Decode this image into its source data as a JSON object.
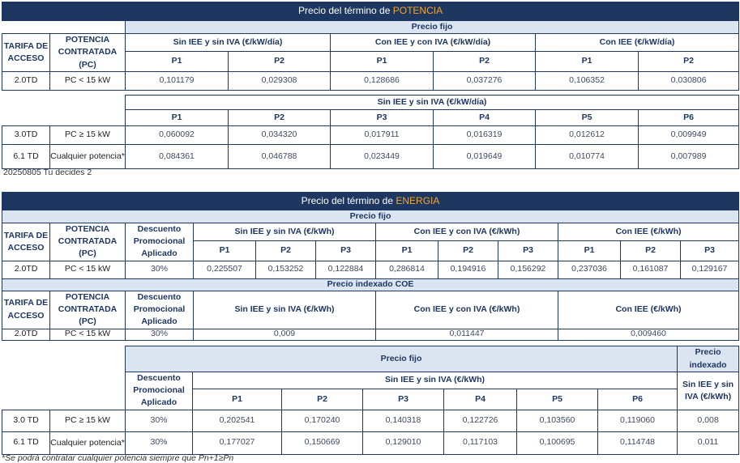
{
  "potencia": {
    "title_prefix": "Precio del término de ",
    "title_highlight": "POTENCIA",
    "precio_fijo": "Precio fijo",
    "col_tarifa": "TARIFA DE ACCESO",
    "col_potencia": "POTENCIA CONTRATADA (PC)",
    "groups": [
      "Sin IEE y sin IVA (€/kW/día)",
      "Con IEE y con IVA (€/kW/día)",
      "Con IEE (€/kW/día)"
    ],
    "periods2": [
      "P1",
      "P2",
      "P1",
      "P2",
      "P1",
      "P2"
    ],
    "row_20td": {
      "tarifa": "2.0TD",
      "potencia": "PC < 15 kW",
      "values": [
        "0,101179",
        "0,029308",
        "0,128686",
        "0,037276",
        "0,106352",
        "0,030806"
      ]
    },
    "group6": "Sin IEE y sin IVA (€/kW/día)",
    "periods6": [
      "P1",
      "P2",
      "P3",
      "P4",
      "P5",
      "P6"
    ],
    "rows6": [
      {
        "tarifa": "3.0TD",
        "potencia": "PC ≥ 15 kW",
        "values": [
          "0,060092",
          "0,034320",
          "0,017911",
          "0,016319",
          "0,012612",
          "0,009949"
        ]
      },
      {
        "tarifa": "6.1 TD",
        "potencia": "Cualquier potencia*",
        "values": [
          "0,084361",
          "0,046788",
          "0,023449",
          "0,019649",
          "0,010774",
          "0,007989"
        ]
      }
    ],
    "footnote": "20250805 Tu decides 2"
  },
  "energia": {
    "title_prefix": "Precio del término de ",
    "title_highlight": "ENERGIA",
    "precio_fijo": "Precio fijo",
    "col_tarifa": "TARIFA DE ACCESO",
    "col_potencia": "POTENCIA CONTRATADA (PC)",
    "col_descuento": "Descuento Promocional Aplicado",
    "groups": [
      "Sin IEE y sin IVA (€/kWh)",
      "Con IEE y con IVA (€/kWh)",
      "Con IEE (€/kWh)"
    ],
    "periods3": [
      "P1",
      "P2",
      "P3",
      "P1",
      "P2",
      "P3",
      "P1",
      "P2",
      "P3"
    ],
    "row_20td": {
      "tarifa": "2.0TD",
      "potencia": "PC < 15 kW",
      "descuento": "30%",
      "values": [
        "0,225507",
        "0,153252",
        "0,122884",
        "0,286814",
        "0,194916",
        "0,156292",
        "0,237036",
        "0,161087",
        "0,129167"
      ]
    },
    "indexado_title": "Precio indexado COE",
    "indexado_row": {
      "tarifa": "2.0TD",
      "potencia": "PC < 15 kW",
      "descuento": "30%",
      "values": [
        "0,009",
        "0,011447",
        "0,009460"
      ]
    },
    "precio_fijo_2": "Precio fijo",
    "precio_indexado": "Precio indexado",
    "group6": "Sin IEE y sin IVA (€/kWh)",
    "indexado_col": "Sin IEE y sin IVA (€/kWh)",
    "periods6": [
      "P1",
      "P2",
      "P3",
      "P4",
      "P5",
      "P6"
    ],
    "rows6": [
      {
        "tarifa": "3.0 TD",
        "potencia": "PC ≥ 15 kW",
        "descuento": "30%",
        "values": [
          "0,202541",
          "0,170240",
          "0,140318",
          "0,122726",
          "0,103560",
          "0,119060"
        ],
        "indexado": "0,008"
      },
      {
        "tarifa": "6.1 TD",
        "potencia": "Cualquier potencia*",
        "descuento": "30%",
        "values": [
          "0,177027",
          "0,150669",
          "0,129010",
          "0,117103",
          "0,100695",
          "0,114748"
        ],
        "indexado": "0,011"
      }
    ],
    "footnote": "*Se podrá contratar cualquier potencia siempre que Pn+1≥Pn"
  },
  "colors": {
    "navy": "#1e3760",
    "band": "#dbe5f1",
    "highlight": "#f5a623"
  }
}
